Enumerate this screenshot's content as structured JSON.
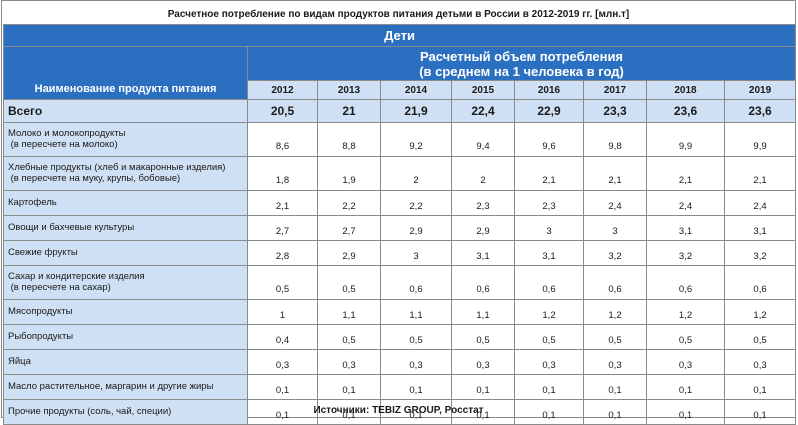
{
  "title": "Расчетное потребление по видам продуктов питания детьми в России в 2012-2019 гг. [млн.т]",
  "section": "Дети",
  "volume_header_line1": "Расчетный объем потребления",
  "volume_header_line2": "(в среднем на 1 человека в год)",
  "name_header": "Наименование продукта питания",
  "years": [
    "2012",
    "2013",
    "2014",
    "2015",
    "2016",
    "2017",
    "2018",
    "2019"
  ],
  "total": {
    "label": "Всего",
    "values": [
      "20,5",
      "21",
      "21,9",
      "22,4",
      "22,9",
      "23,3",
      "23,6",
      "23,6"
    ]
  },
  "rows": [
    {
      "line1": "Молоко и молокопродукты",
      "line2": " (в пересчете на молоко)",
      "values": [
        "8,6",
        "8,8",
        "9,2",
        "9,4",
        "9,6",
        "9,8",
        "9,9",
        "9,9"
      ]
    },
    {
      "line1": "Хлебные продукты (хлеб и макаронные изделия)",
      "line2": " (в пересчете на муку, крупы, бобовые)",
      "values": [
        "1,8",
        "1,9",
        "2",
        "2",
        "2,1",
        "2,1",
        "2,1",
        "2,1"
      ]
    },
    {
      "line1": "Картофель",
      "line2": "",
      "values": [
        "2,1",
        "2,2",
        "2,2",
        "2,3",
        "2,3",
        "2,4",
        "2,4",
        "2,4"
      ]
    },
    {
      "line1": "Овощи и бахчевые культуры",
      "line2": "",
      "values": [
        "2,7",
        "2,7",
        "2,9",
        "2,9",
        "3",
        "3",
        "3,1",
        "3,1"
      ]
    },
    {
      "line1": "Свежие фрукты",
      "line2": "",
      "values": [
        "2,8",
        "2,9",
        "3",
        "3,1",
        "3,1",
        "3,2",
        "3,2",
        "3,2"
      ]
    },
    {
      "line1": "Сахар и кондитерские изделия",
      "line2": " (в пересчете на сахар)",
      "values": [
        "0,5",
        "0,5",
        "0,6",
        "0,6",
        "0,6",
        "0,6",
        "0,6",
        "0,6"
      ]
    },
    {
      "line1": "Мясопродукты",
      "line2": "",
      "values": [
        "1",
        "1,1",
        "1,1",
        "1,1",
        "1,2",
        "1,2",
        "1,2",
        "1,2"
      ]
    },
    {
      "line1": "Рыбопродукты",
      "line2": "",
      "values": [
        "0,4",
        "0,5",
        "0,5",
        "0,5",
        "0,5",
        "0,5",
        "0,5",
        "0,5"
      ]
    },
    {
      "line1": "Яйца",
      "line2": "",
      "values": [
        "0,3",
        "0,3",
        "0,3",
        "0,3",
        "0,3",
        "0,3",
        "0,3",
        "0,3"
      ]
    },
    {
      "line1": "Масло растительное, маргарин и другие жиры",
      "line2": "",
      "values": [
        "0,1",
        "0,1",
        "0,1",
        "0,1",
        "0,1",
        "0,1",
        "0,1",
        "0,1"
      ]
    },
    {
      "line1": "Прочие продукты (соль, чай, специи)",
      "line2": "",
      "values": [
        "0,1",
        "0,1",
        "0,1",
        "0,1",
        "0,1",
        "0,1",
        "0,1",
        "0,1"
      ]
    }
  ],
  "footer": "Источники: TEBIZ GROUP, Росстат",
  "colors": {
    "header_blue": "#2a6fc0",
    "light_blue": "#cfe0f4",
    "border": "#8a8a8a"
  }
}
